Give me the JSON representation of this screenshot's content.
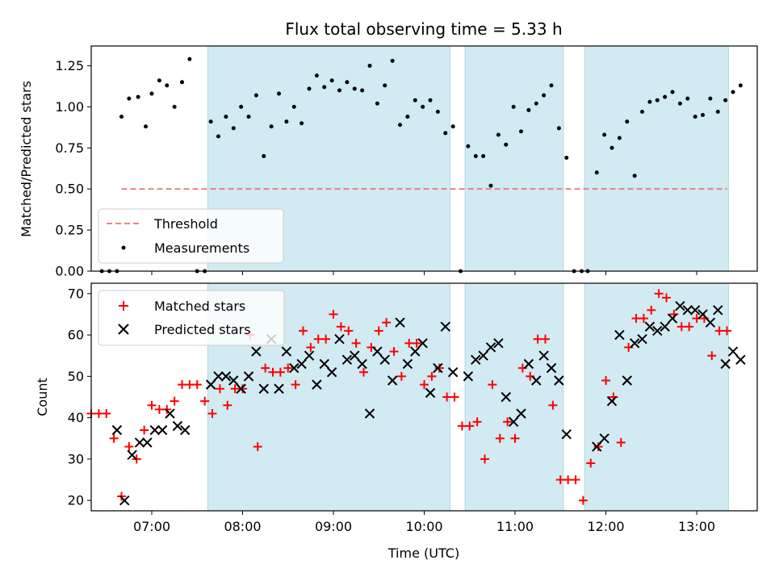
{
  "chart_data": [
    {
      "type": "scatter",
      "title": "Flux total observing time = 5.33 h",
      "xlabel": "",
      "ylabel": "Matched/Predicted stars",
      "xlim": [
        "06:20",
        "13:40"
      ],
      "ylim": [
        0,
        1.37
      ],
      "yticks": [
        "0.00",
        "0.25",
        "0.50",
        "0.75",
        "1.00",
        "1.25"
      ],
      "threshold": {
        "name": "Threshold",
        "value": 0.5,
        "x_range": [
          "06:40",
          "13:20"
        ],
        "color": "#f08080"
      },
      "legend": {
        "placement": "lower-left",
        "entries": [
          "Threshold",
          "Measurements"
        ]
      },
      "shaded_intervals": [
        [
          "07:37",
          "10:17"
        ],
        [
          "10:27",
          "11:32"
        ],
        [
          "11:46",
          "13:21"
        ]
      ],
      "shade_color": "#add8e6",
      "series": [
        {
          "name": "Measurements",
          "color": "#000000",
          "points": [
            [
              "06:27",
              0.0
            ],
            [
              "06:32",
              0.0
            ],
            [
              "06:37",
              0.0
            ],
            [
              "06:40",
              0.94
            ],
            [
              "06:45",
              1.05
            ],
            [
              "06:51",
              1.06
            ],
            [
              "06:56",
              0.88
            ],
            [
              "07:00",
              1.08
            ],
            [
              "07:05",
              1.16
            ],
            [
              "07:10",
              1.13
            ],
            [
              "07:15",
              1.0
            ],
            [
              "07:20",
              1.15
            ],
            [
              "07:25",
              1.29
            ],
            [
              "07:30",
              0.0
            ],
            [
              "07:35",
              0.0
            ],
            [
              "07:39",
              0.91
            ],
            [
              "07:44",
              0.82
            ],
            [
              "07:49",
              0.94
            ],
            [
              "07:54",
              0.87
            ],
            [
              "07:59",
              1.0
            ],
            [
              "08:04",
              0.94
            ],
            [
              "08:09",
              1.07
            ],
            [
              "08:14",
              0.7
            ],
            [
              "08:19",
              0.88
            ],
            [
              "08:24",
              1.08
            ],
            [
              "08:29",
              0.91
            ],
            [
              "08:34",
              1.0
            ],
            [
              "08:39",
              0.9
            ],
            [
              "08:44",
              1.11
            ],
            [
              "08:49",
              1.19
            ],
            [
              "08:54",
              1.12
            ],
            [
              "08:59",
              1.16
            ],
            [
              "09:04",
              1.1
            ],
            [
              "09:09",
              1.15
            ],
            [
              "09:14",
              1.11
            ],
            [
              "09:19",
              1.1
            ],
            [
              "09:24",
              1.25
            ],
            [
              "09:29",
              1.02
            ],
            [
              "09:34",
              1.13
            ],
            [
              "09:39",
              1.28
            ],
            [
              "09:44",
              0.89
            ],
            [
              "09:49",
              0.94
            ],
            [
              "09:54",
              1.04
            ],
            [
              "09:59",
              1.0
            ],
            [
              "10:04",
              1.04
            ],
            [
              "10:09",
              0.97
            ],
            [
              "10:14",
              0.84
            ],
            [
              "10:19",
              0.88
            ],
            [
              "10:24",
              0.0
            ],
            [
              "10:29",
              0.76
            ],
            [
              "10:34",
              0.7
            ],
            [
              "10:39",
              0.7
            ],
            [
              "10:44",
              0.52
            ],
            [
              "10:49",
              0.83
            ],
            [
              "10:54",
              0.77
            ],
            [
              "10:59",
              1.0
            ],
            [
              "11:04",
              0.85
            ],
            [
              "11:09",
              0.98
            ],
            [
              "11:14",
              1.02
            ],
            [
              "11:19",
              1.07
            ],
            [
              "11:24",
              1.13
            ],
            [
              "11:29",
              0.87
            ],
            [
              "11:34",
              0.69
            ],
            [
              "11:39",
              0.0
            ],
            [
              "11:44",
              0.0
            ],
            [
              "11:48",
              0.0
            ],
            [
              "11:54",
              0.6
            ],
            [
              "11:59",
              0.83
            ],
            [
              "12:04",
              0.75
            ],
            [
              "12:09",
              0.81
            ],
            [
              "12:14",
              0.91
            ],
            [
              "12:19",
              0.58
            ],
            [
              "12:24",
              0.97
            ],
            [
              "12:29",
              1.03
            ],
            [
              "12:34",
              1.04
            ],
            [
              "12:39",
              1.06
            ],
            [
              "12:44",
              1.09
            ],
            [
              "12:49",
              1.02
            ],
            [
              "12:54",
              1.05
            ],
            [
              "12:59",
              0.94
            ],
            [
              "13:04",
              0.95
            ],
            [
              "13:09",
              1.05
            ],
            [
              "13:14",
              0.97
            ],
            [
              "13:19",
              1.04
            ],
            [
              "13:24",
              1.09
            ],
            [
              "13:29",
              1.13
            ]
          ]
        }
      ]
    },
    {
      "type": "scatter",
      "title": "",
      "xlabel": "Time (UTC)",
      "ylabel": "Count",
      "xlim": [
        "06:20",
        "13:40"
      ],
      "ylim": [
        17.5,
        72.5
      ],
      "xticks": [
        "07:00",
        "08:00",
        "09:00",
        "10:00",
        "11:00",
        "12:00",
        "13:00"
      ],
      "yticks": [
        "20",
        "30",
        "40",
        "50",
        "60",
        "70"
      ],
      "legend": {
        "placement": "top-left",
        "entries": [
          "Matched stars",
          "Predicted stars"
        ]
      },
      "shaded_intervals": [
        [
          "07:37",
          "10:17"
        ],
        [
          "10:27",
          "11:32"
        ],
        [
          "11:46",
          "13:21"
        ]
      ],
      "shade_color": "#add8e6",
      "series": [
        {
          "name": "Matched stars",
          "marker": "plus",
          "color": "#ff0000",
          "points": [
            [
              "06:20",
              41
            ],
            [
              "06:25",
              41
            ],
            [
              "06:30",
              41
            ],
            [
              "06:35",
              35
            ],
            [
              "06:40",
              21
            ],
            [
              "06:45",
              33
            ],
            [
              "06:50",
              30
            ],
            [
              "06:55",
              37
            ],
            [
              "07:00",
              43
            ],
            [
              "07:05",
              42
            ],
            [
              "07:10",
              42
            ],
            [
              "07:15",
              44
            ],
            [
              "07:20",
              48
            ],
            [
              "07:25",
              48
            ],
            [
              "07:30",
              48
            ],
            [
              "07:35",
              44
            ],
            [
              "07:40",
              41
            ],
            [
              "07:45",
              47
            ],
            [
              "07:50",
              43
            ],
            [
              "07:55",
              47
            ],
            [
              "08:00",
              47
            ],
            [
              "08:05",
              60
            ],
            [
              "08:10",
              33
            ],
            [
              "08:15",
              52
            ],
            [
              "08:20",
              51
            ],
            [
              "08:25",
              51
            ],
            [
              "08:30",
              52
            ],
            [
              "08:35",
              48
            ],
            [
              "08:40",
              61
            ],
            [
              "08:45",
              57
            ],
            [
              "08:50",
              59
            ],
            [
              "08:55",
              59
            ],
            [
              "09:00",
              65
            ],
            [
              "09:05",
              62
            ],
            [
              "09:10",
              61
            ],
            [
              "09:15",
              58
            ],
            [
              "09:20",
              51
            ],
            [
              "09:25",
              57
            ],
            [
              "09:30",
              61
            ],
            [
              "09:35",
              63
            ],
            [
              "09:40",
              56
            ],
            [
              "09:45",
              50
            ],
            [
              "09:50",
              58
            ],
            [
              "09:55",
              58
            ],
            [
              "10:00",
              48
            ],
            [
              "10:05",
              50
            ],
            [
              "10:10",
              52
            ],
            [
              "10:15",
              45
            ],
            [
              "10:20",
              45
            ],
            [
              "10:25",
              38
            ],
            [
              "10:30",
              38
            ],
            [
              "10:35",
              39
            ],
            [
              "10:40",
              30
            ],
            [
              "10:45",
              48
            ],
            [
              "10:50",
              35
            ],
            [
              "10:55",
              39
            ],
            [
              "11:00",
              35
            ],
            [
              "11:05",
              52
            ],
            [
              "11:10",
              50
            ],
            [
              "11:15",
              59
            ],
            [
              "11:20",
              59
            ],
            [
              "11:25",
              43
            ],
            [
              "11:30",
              25
            ],
            [
              "11:35",
              25
            ],
            [
              "11:40",
              25
            ],
            [
              "11:45",
              20
            ],
            [
              "11:50",
              29
            ],
            [
              "11:55",
              33
            ],
            [
              "12:00",
              49
            ],
            [
              "12:05",
              45
            ],
            [
              "12:10",
              34
            ],
            [
              "12:15",
              57
            ],
            [
              "12:20",
              64
            ],
            [
              "12:25",
              64
            ],
            [
              "12:30",
              66
            ],
            [
              "12:35",
              70
            ],
            [
              "12:40",
              69
            ],
            [
              "12:45",
              65
            ],
            [
              "12:50",
              62
            ],
            [
              "12:55",
              62
            ],
            [
              "13:00",
              64
            ],
            [
              "13:05",
              64
            ],
            [
              "13:10",
              55
            ],
            [
              "13:15",
              61
            ],
            [
              "13:20",
              61
            ]
          ]
        },
        {
          "name": "Predicted stars",
          "marker": "x",
          "color": "#000000",
          "points": [
            [
              "06:37",
              37
            ],
            [
              "06:42",
              20
            ],
            [
              "06:47",
              31
            ],
            [
              "06:52",
              34
            ],
            [
              "06:57",
              34
            ],
            [
              "07:02",
              37
            ],
            [
              "07:07",
              37
            ],
            [
              "07:12",
              41
            ],
            [
              "07:17",
              38
            ],
            [
              "07:22",
              37
            ],
            [
              "07:39",
              48
            ],
            [
              "07:44",
              50
            ],
            [
              "07:49",
              50
            ],
            [
              "07:54",
              49
            ],
            [
              "07:59",
              47
            ],
            [
              "08:04",
              50
            ],
            [
              "08:09",
              56
            ],
            [
              "08:14",
              47
            ],
            [
              "08:19",
              59
            ],
            [
              "08:24",
              47
            ],
            [
              "08:29",
              56
            ],
            [
              "08:34",
              52
            ],
            [
              "08:39",
              53
            ],
            [
              "08:44",
              55
            ],
            [
              "08:49",
              48
            ],
            [
              "08:54",
              53
            ],
            [
              "08:59",
              51
            ],
            [
              "09:04",
              59
            ],
            [
              "09:09",
              54
            ],
            [
              "09:14",
              55
            ],
            [
              "09:19",
              53
            ],
            [
              "09:24",
              41
            ],
            [
              "09:29",
              56
            ],
            [
              "09:34",
              54
            ],
            [
              "09:39",
              49
            ],
            [
              "09:44",
              63
            ],
            [
              "09:49",
              53
            ],
            [
              "09:54",
              56
            ],
            [
              "09:59",
              58
            ],
            [
              "10:04",
              46
            ],
            [
              "10:09",
              52
            ],
            [
              "10:14",
              62
            ],
            [
              "10:19",
              51
            ],
            [
              "10:29",
              50
            ],
            [
              "10:34",
              54
            ],
            [
              "10:39",
              55
            ],
            [
              "10:44",
              57
            ],
            [
              "10:49",
              58
            ],
            [
              "10:54",
              45
            ],
            [
              "10:59",
              39
            ],
            [
              "11:04",
              41
            ],
            [
              "11:09",
              53
            ],
            [
              "11:14",
              49
            ],
            [
              "11:19",
              55
            ],
            [
              "11:24",
              52
            ],
            [
              "11:29",
              49
            ],
            [
              "11:34",
              36
            ],
            [
              "11:54",
              33
            ],
            [
              "11:59",
              35
            ],
            [
              "12:04",
              44
            ],
            [
              "12:09",
              60
            ],
            [
              "12:14",
              49
            ],
            [
              "12:19",
              58
            ],
            [
              "12:24",
              59
            ],
            [
              "12:29",
              62
            ],
            [
              "12:34",
              61
            ],
            [
              "12:39",
              62
            ],
            [
              "12:44",
              64
            ],
            [
              "12:49",
              67
            ],
            [
              "12:54",
              66
            ],
            [
              "12:59",
              66
            ],
            [
              "13:04",
              65
            ],
            [
              "13:09",
              63
            ],
            [
              "13:14",
              66
            ],
            [
              "13:19",
              53
            ],
            [
              "13:24",
              56
            ],
            [
              "13:29",
              54
            ]
          ]
        }
      ]
    }
  ]
}
